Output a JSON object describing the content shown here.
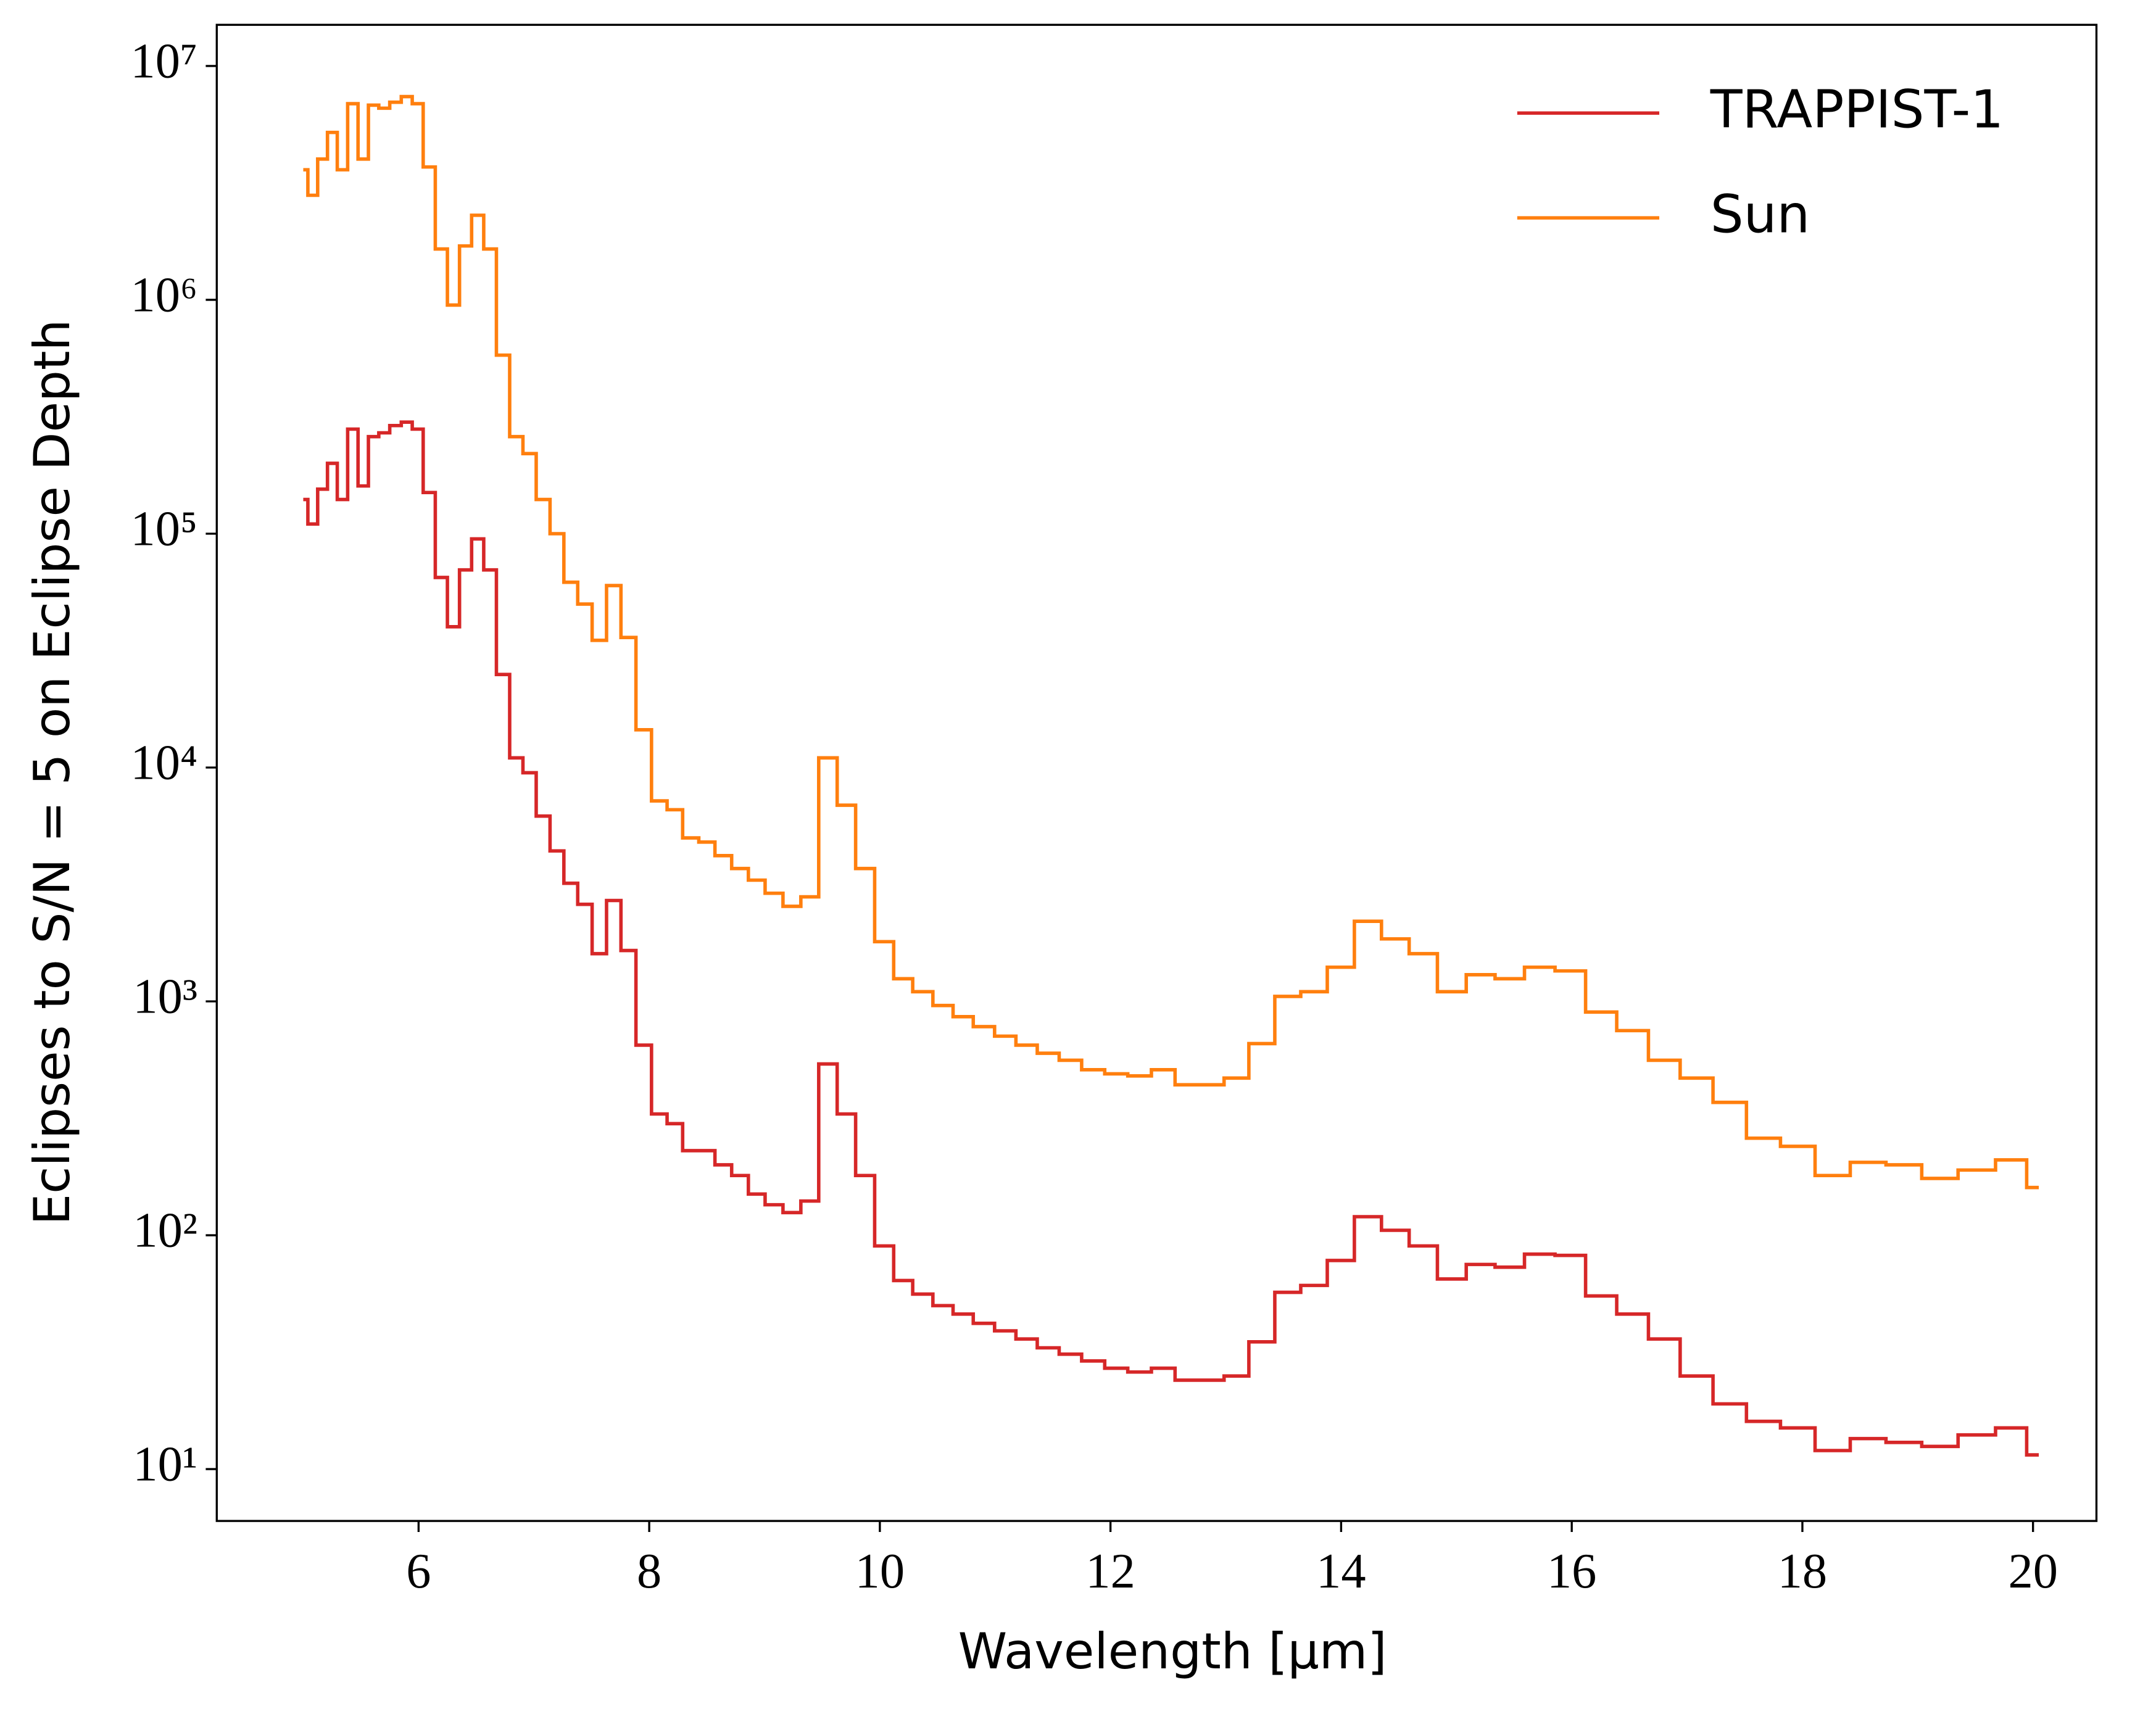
{
  "chart_data": {
    "type": "step",
    "x_label": "Wavelength [μm]",
    "y_label": "Eclipses to S/N = 5 on Eclipse Depth",
    "log_y": true,
    "legend": "upper right",
    "xlim": [
      4.25,
      20.55
    ],
    "ylim": [
      6,
      15000000
    ],
    "xticks": [
      6,
      8,
      10,
      12,
      14,
      16,
      18,
      20
    ],
    "yticks": [
      {
        "value": 10,
        "label": "10¹"
      },
      {
        "value": 100,
        "label": "10²"
      },
      {
        "value": 1000,
        "label": "10³"
      },
      {
        "value": 10000,
        "label": "10⁴"
      },
      {
        "value": 100000,
        "label": "10⁵"
      },
      {
        "value": 1000000,
        "label": "10⁶"
      },
      {
        "value": 10000000,
        "label": "10⁷"
      }
    ],
    "x": [
      5.0,
      5.08,
      5.17,
      5.25,
      5.34,
      5.43,
      5.52,
      5.61,
      5.7,
      5.8,
      5.9,
      5.99,
      6.09,
      6.2,
      6.3,
      6.41,
      6.51,
      6.62,
      6.73,
      6.85,
      6.96,
      7.08,
      7.2,
      7.32,
      7.44,
      7.57,
      7.69,
      7.82,
      7.95,
      8.09,
      8.22,
      8.36,
      8.5,
      8.64,
      8.79,
      8.93,
      9.08,
      9.24,
      9.39,
      9.55,
      9.71,
      9.87,
      10.04,
      10.2,
      10.37,
      10.55,
      10.72,
      10.9,
      11.09,
      11.27,
      11.46,
      11.65,
      11.85,
      12.05,
      12.25,
      12.46,
      12.66,
      12.88,
      13.09,
      13.31,
      13.54,
      13.76,
      14.0,
      14.23,
      14.47,
      14.71,
      14.96,
      15.21,
      15.46,
      15.72,
      15.99,
      16.25,
      16.53,
      16.8,
      17.08,
      17.37,
      17.66,
      17.96,
      18.26,
      18.57,
      18.88,
      19.19,
      19.51,
      19.84,
      20.05
    ],
    "series": [
      {
        "name": "TRAPPIST-1",
        "color": "#d62728",
        "values": [
          140000,
          110000,
          155000,
          200000,
          140000,
          280000,
          160000,
          260000,
          270000,
          290000,
          300000,
          280000,
          150000,
          65000,
          40000,
          70000,
          95000,
          70000,
          25000,
          11000,
          9500,
          6200,
          4400,
          3200,
          2600,
          1600,
          2700,
          1650,
          650,
          330,
          300,
          230,
          230,
          200,
          180,
          150,
          135,
          125,
          140,
          540,
          330,
          180,
          90,
          64,
          56,
          50,
          46,
          42,
          39,
          36,
          33,
          31,
          29,
          27,
          26,
          27,
          24,
          24,
          25,
          35,
          57,
          61,
          78,
          120,
          105,
          90,
          65,
          75,
          73,
          83,
          82,
          55,
          46,
          36,
          25,
          19,
          16,
          15,
          12,
          13.5,
          13,
          12.5,
          14,
          15,
          11.5
        ]
      },
      {
        "name": "Sun",
        "color": "#ff7f0e",
        "values": [
          3600000,
          2800000,
          4000000,
          5200000,
          3600000,
          6900000,
          4000000,
          6800000,
          6600000,
          7000000,
          7400000,
          6900000,
          3700000,
          1650000,
          950000,
          1700000,
          2300000,
          1650000,
          580000,
          260000,
          220000,
          140000,
          100000,
          62000,
          50000,
          35000,
          60000,
          36000,
          14500,
          7200,
          6600,
          5000,
          4800,
          4200,
          3700,
          3300,
          2900,
          2550,
          2800,
          11000,
          6900,
          3700,
          1800,
          1250,
          1100,
          960,
          860,
          780,
          710,
          650,
          600,
          560,
          510,
          490,
          480,
          510,
          440,
          440,
          470,
          660,
          1050,
          1100,
          1400,
          2200,
          1850,
          1600,
          1100,
          1300,
          1250,
          1400,
          1350,
          900,
          750,
          560,
          470,
          370,
          260,
          240,
          180,
          205,
          200,
          175,
          190,
          210,
          160
        ]
      }
    ]
  }
}
